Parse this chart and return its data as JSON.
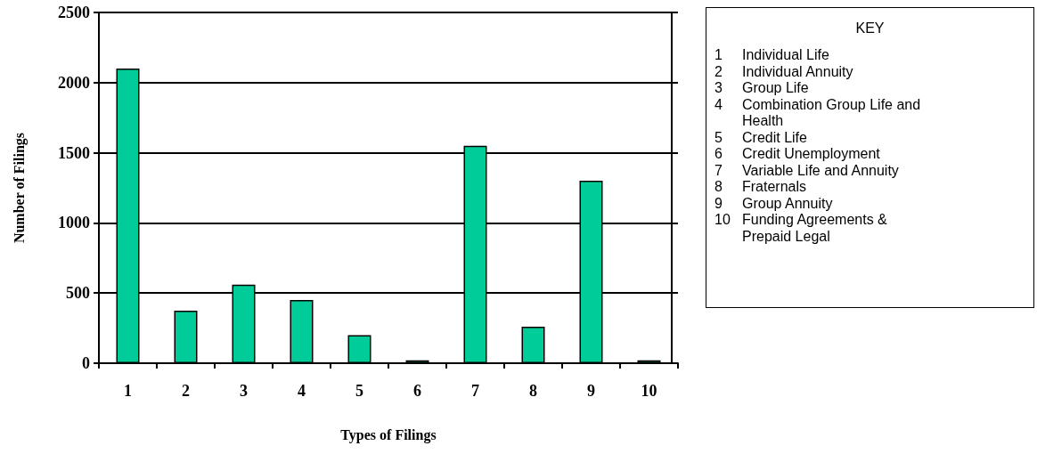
{
  "chart_data": {
    "type": "bar",
    "xlabel": "Types of Filings",
    "ylabel": "Number of Filings",
    "legend_title": "KEY",
    "categories": [
      "1",
      "2",
      "3",
      "4",
      "5",
      "6",
      "7",
      "8",
      "9",
      "10"
    ],
    "values": [
      2100,
      375,
      560,
      450,
      200,
      20,
      1550,
      260,
      1300,
      20
    ],
    "color": "#00cc99",
    "ylim": [
      0,
      2500
    ],
    "yticks": [
      0,
      500,
      1000,
      1500,
      2000,
      2500
    ],
    "grid": "y",
    "annotations": [
      "Individual Life",
      "Individual Annuity",
      "Group Life",
      "Combination Group Life and Health",
      "Credit Life",
      "Credit Unemployment",
      "Variable Life and Annuity",
      "Fraternals",
      "Group Annuity",
      "Funding Agreements & Prepaid Legal"
    ]
  }
}
